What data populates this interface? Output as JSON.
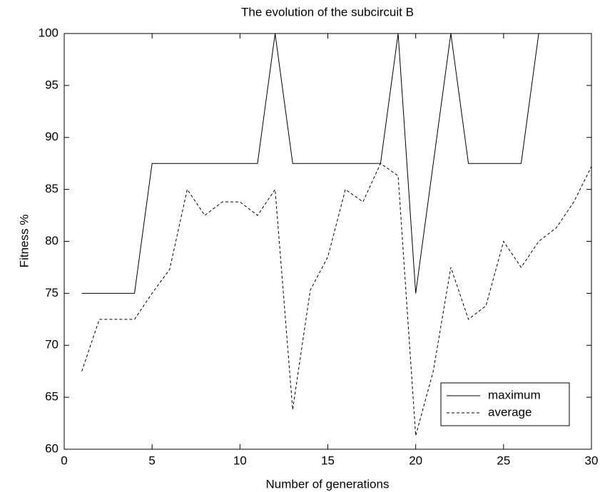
{
  "chart_data": {
    "type": "line",
    "title": "The evolution of the subcircuit B",
    "xlabel": "Number of generations",
    "ylabel": "Fitness %",
    "x": [
      1,
      2,
      3,
      4,
      5,
      6,
      7,
      8,
      9,
      10,
      11,
      12,
      13,
      14,
      15,
      16,
      17,
      18,
      19,
      20,
      21,
      22,
      23,
      24,
      25,
      26,
      27,
      28,
      29,
      30
    ],
    "series": [
      {
        "name": "maximum",
        "color": "#000000",
        "linestyle": "solid",
        "values": [
          75,
          75,
          75,
          75,
          87.5,
          87.5,
          87.5,
          87.5,
          87.5,
          87.5,
          87.5,
          100,
          87.5,
          87.5,
          87.5,
          87.5,
          87.5,
          87.5,
          100,
          75,
          87.5,
          100,
          87.5,
          87.5,
          87.5,
          87.5,
          100,
          100,
          100,
          100
        ]
      },
      {
        "name": "average",
        "color": "#000000",
        "linestyle": "dashed",
        "values": [
          67.5,
          72.5,
          72.5,
          72.5,
          75,
          77.3,
          85,
          82.5,
          83.8,
          83.8,
          82.5,
          85,
          63.8,
          75.3,
          78.5,
          85,
          83.8,
          87.5,
          86.3,
          61.3,
          67.5,
          77.5,
          72.5,
          73.8,
          80,
          77.5,
          80,
          81.3,
          83.8,
          87.2
        ]
      }
    ],
    "xlim": [
      0,
      30
    ],
    "xticks": [
      0,
      5,
      10,
      15,
      20,
      25,
      30
    ],
    "ylim": [
      60,
      100
    ],
    "yticks": [
      60,
      65,
      70,
      75,
      80,
      85,
      90,
      95,
      100
    ],
    "legend": "lower right"
  }
}
